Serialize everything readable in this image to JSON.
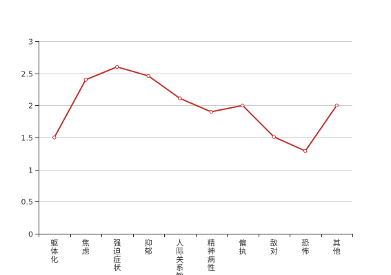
{
  "chart_data": {
    "type": "line",
    "categories": [
      "躯体化",
      "焦虑",
      "强迫症状",
      "抑郁",
      "人际关系敏感",
      "精神病性",
      "偏执",
      "敌对",
      "恐怖",
      "其他"
    ],
    "series": [
      {
        "values": [
          1.5,
          2.4,
          2.6,
          2.46,
          2.11,
          1.9,
          2.0,
          1.51,
          1.29,
          2.0
        ]
      }
    ],
    "yticks": [
      0,
      0.5,
      1,
      1.5,
      2,
      2.5,
      3
    ],
    "ytick_labels": [
      "0",
      "0.5",
      "1",
      "1.5",
      "2",
      "2.5",
      "3"
    ],
    "ylim": [
      0,
      3
    ],
    "grid": true,
    "legend": "none",
    "colors": {
      "line": "#c23531",
      "grid": "#cccccc",
      "axis": "#333333",
      "point_fill": "#ffffff"
    }
  }
}
